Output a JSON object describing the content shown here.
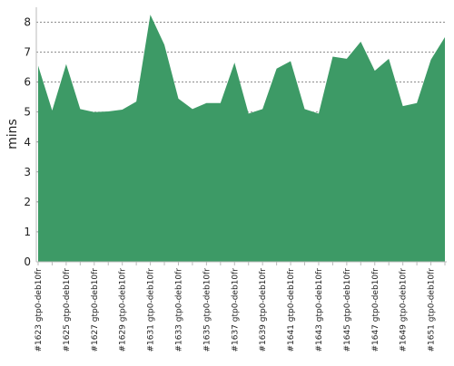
{
  "chart_data": {
    "type": "area",
    "y_label": "mins",
    "categories": [
      "#1623 gtp0-deb10fr",
      null,
      "#1625 gtp0-deb10fr",
      null,
      "#1627 gtp0-deb10fr",
      null,
      "#1629 gtp0-deb10fr",
      null,
      "#1631 gtp0-deb10fr",
      null,
      "#1633 gtp0-deb10fr",
      null,
      "#1635 gtp0-deb10fr",
      null,
      "#1637 gtp0-deb10fr",
      null,
      "#1639 gtp0-deb10fr",
      null,
      "#1641 gtp0-deb10fr",
      null,
      "#1643 gtp0-deb10fr",
      null,
      "#1645 gtp0-deb10fr",
      null,
      "#1647 gtp0-deb10fr",
      null,
      "#1649 gtp0-deb10fr",
      null,
      "#1651 gtp0-deb10fr",
      null
    ],
    "values": [
      6.55,
      5.05,
      6.6,
      5.1,
      5.0,
      5.02,
      5.08,
      5.35,
      8.25,
      7.25,
      5.45,
      5.1,
      5.3,
      5.3,
      6.65,
      4.95,
      5.1,
      6.45,
      6.7,
      5.1,
      4.95,
      6.85,
      6.78,
      7.35,
      6.38,
      6.78,
      5.2,
      5.3,
      6.75,
      7.5
    ],
    "color": "#3d9a66",
    "ylim": [
      0,
      8.5
    ],
    "yticks": [
      0,
      1,
      2,
      3,
      4,
      5,
      6,
      7,
      8
    ],
    "grid": true
  }
}
